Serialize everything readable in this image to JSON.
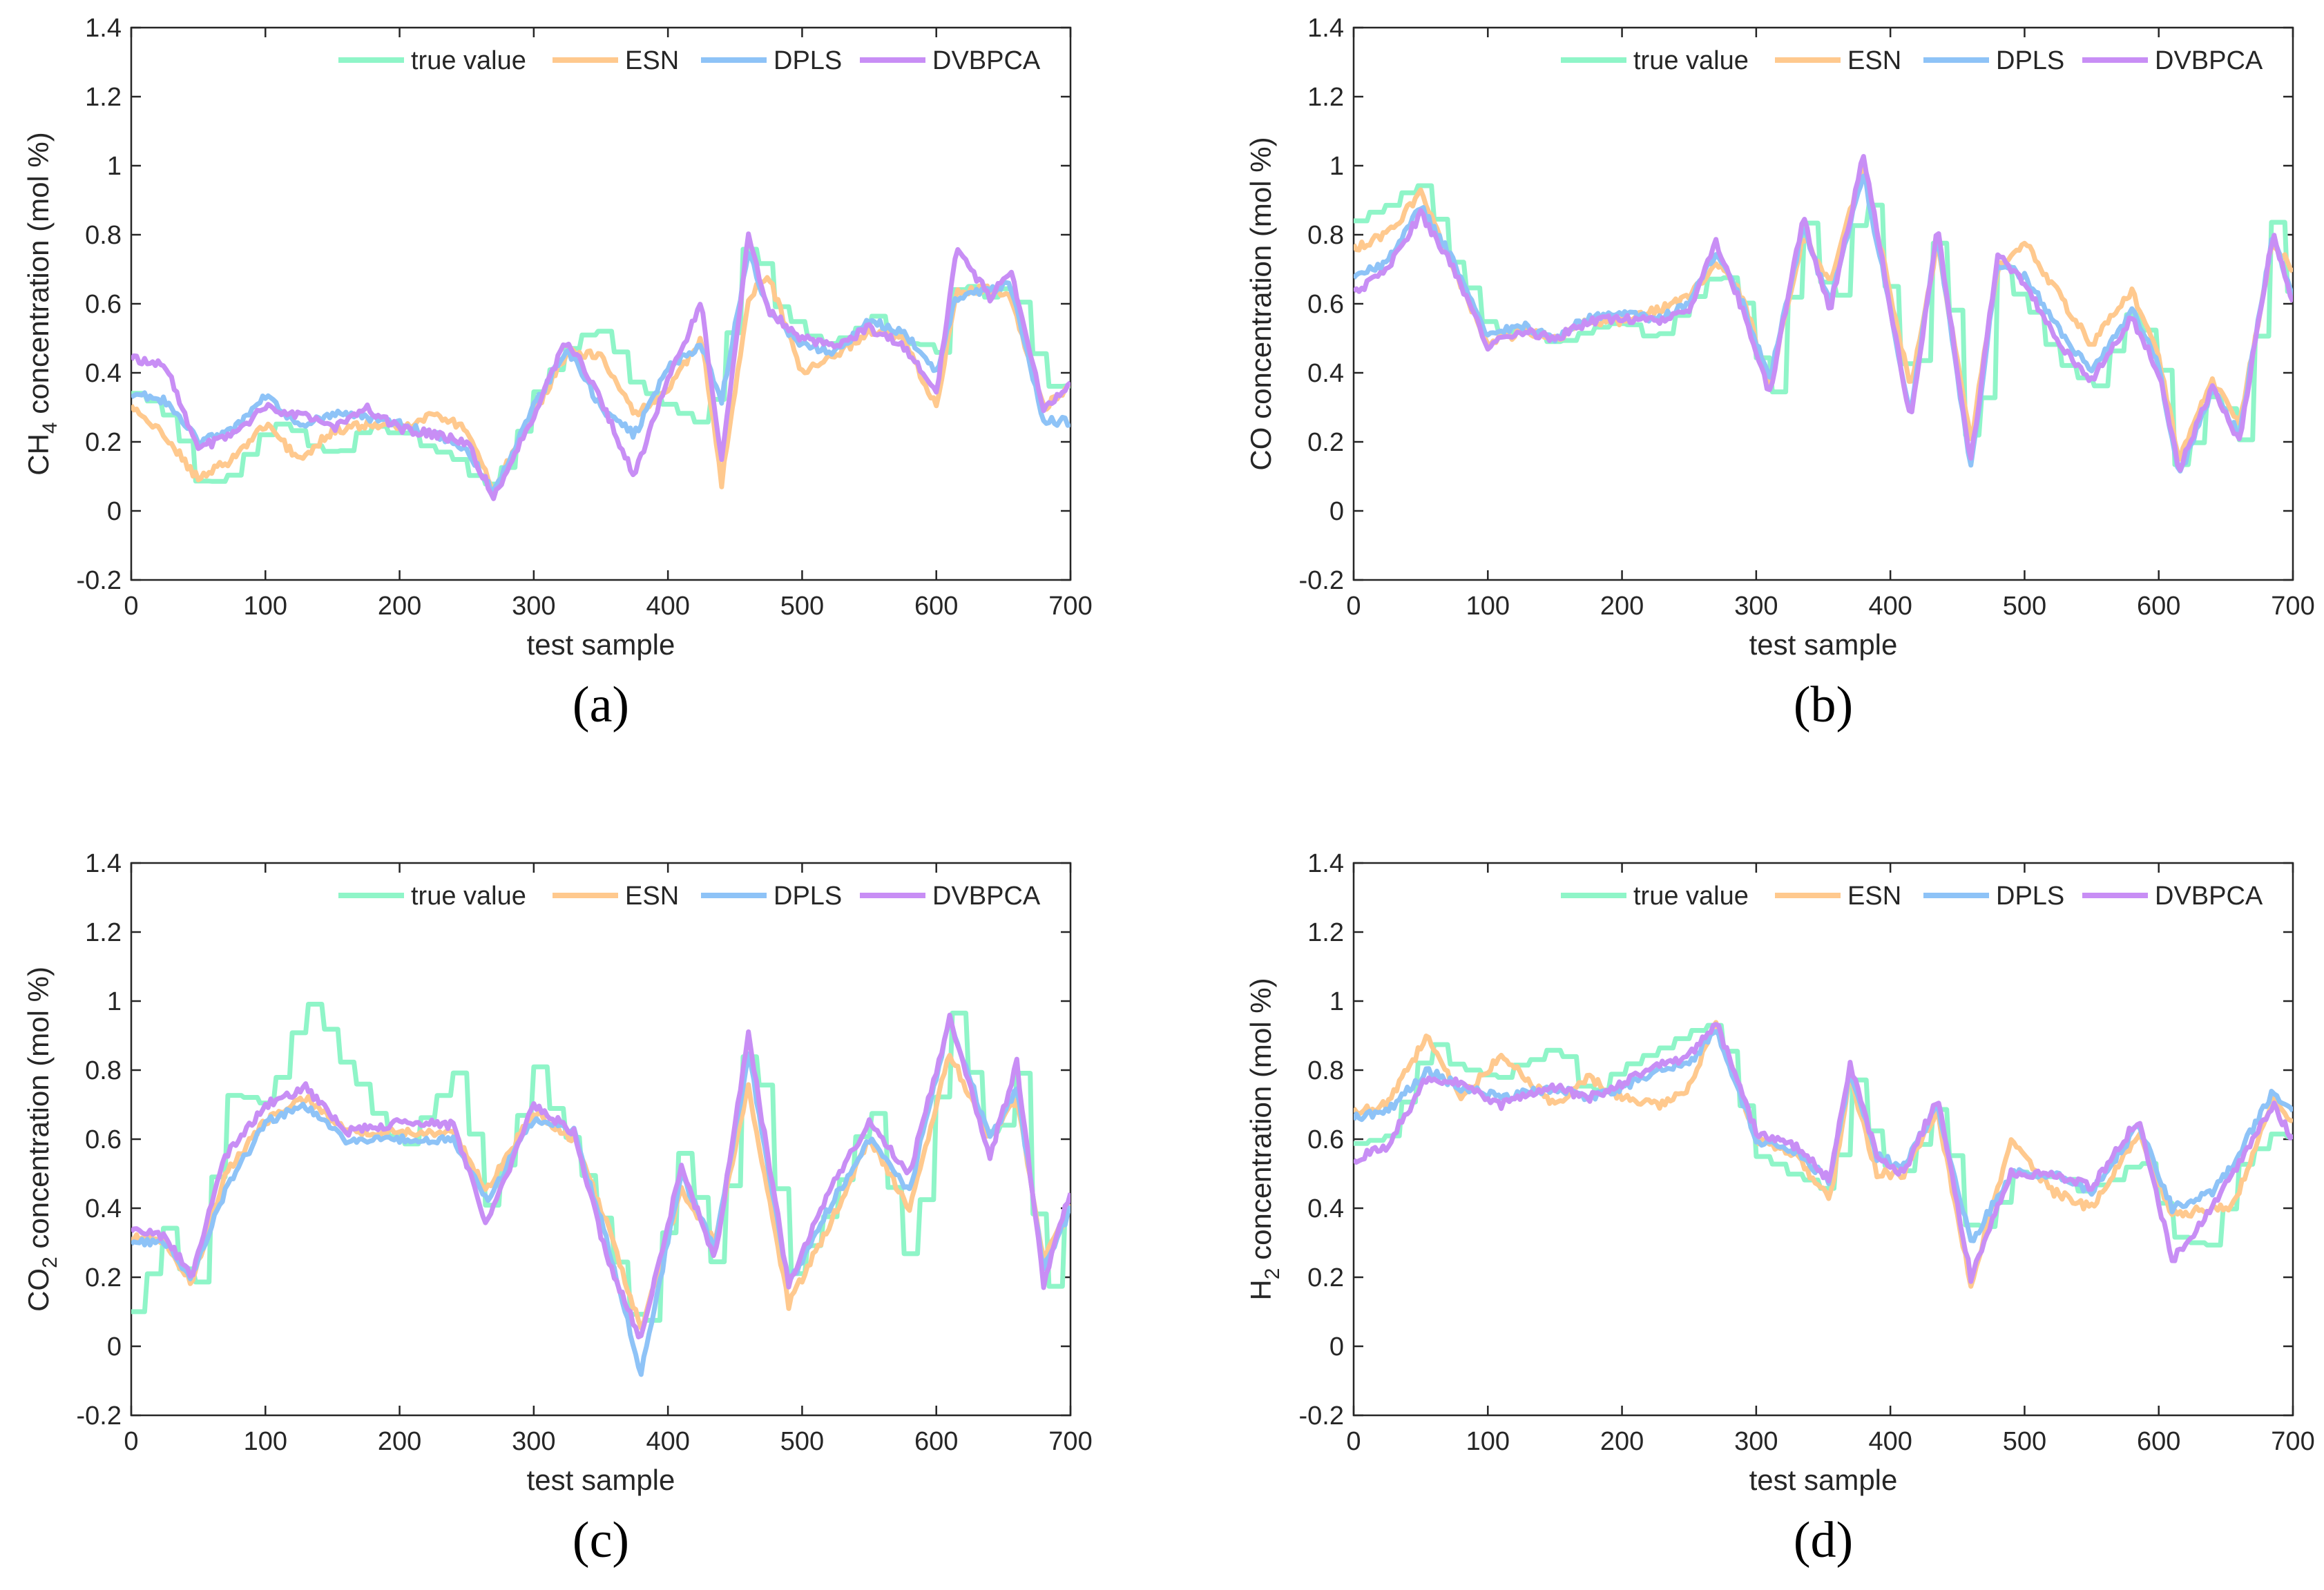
{
  "figure": {
    "colors": {
      "true value": "#8ff5c8",
      "ESN": "#ffc98e",
      "DPLS": "#8ec3f7",
      "DVBPCA": "#c88ef5"
    }
  },
  "chart_data": [
    {
      "type": "line",
      "caption": "(a)",
      "ylabel": "CH",
      "ylabel_sub": "4",
      "ylabel_rest": " concentration (mol %)",
      "xlabel": "test sample",
      "xlim": [
        0,
        700
      ],
      "ylim": [
        -0.2,
        1.4
      ],
      "xticks": [
        "0",
        "100",
        "200",
        "300",
        "400",
        "500",
        "600",
        "700"
      ],
      "yticks": [
        "-0.2",
        "0",
        "0.2",
        "0.4",
        "0.6",
        "0.8",
        "1",
        "1.2",
        "1.4"
      ],
      "legend": [
        "true value",
        "ESN",
        "DPLS",
        "DVBPCA"
      ],
      "legend_position": "top-right",
      "x": [
        0,
        25,
        50,
        75,
        100,
        125,
        150,
        175,
        200,
        225,
        250,
        270,
        300,
        325,
        350,
        375,
        400,
        425,
        440,
        460,
        475,
        500,
        525,
        550,
        575,
        600,
        615,
        640,
        655,
        680,
        700
      ],
      "series": [
        {
          "name": "true value",
          "values": [
            0.33,
            0.28,
            0.08,
            0.12,
            0.25,
            0.22,
            0.15,
            0.25,
            0.23,
            0.18,
            0.12,
            0.06,
            0.35,
            0.48,
            0.52,
            0.35,
            0.3,
            0.25,
            0.42,
            0.84,
            0.6,
            0.52,
            0.48,
            0.57,
            0.48,
            0.46,
            0.68,
            0.62,
            0.66,
            0.36,
            0.36
          ]
        },
        {
          "name": "ESN",
          "values": [
            0.3,
            0.22,
            0.09,
            0.15,
            0.25,
            0.15,
            0.23,
            0.25,
            0.24,
            0.28,
            0.24,
            0.06,
            0.28,
            0.46,
            0.45,
            0.28,
            0.35,
            0.5,
            0.08,
            0.62,
            0.68,
            0.4,
            0.45,
            0.52,
            0.5,
            0.3,
            0.64,
            0.64,
            0.62,
            0.3,
            0.36
          ]
        },
        {
          "name": "DPLS",
          "values": [
            0.34,
            0.32,
            0.2,
            0.23,
            0.33,
            0.25,
            0.28,
            0.27,
            0.25,
            0.22,
            0.18,
            0.05,
            0.3,
            0.47,
            0.3,
            0.22,
            0.42,
            0.48,
            0.32,
            0.75,
            0.58,
            0.48,
            0.46,
            0.55,
            0.52,
            0.4,
            0.62,
            0.64,
            0.66,
            0.26,
            0.26
          ]
        },
        {
          "name": "DVBPCA",
          "values": [
            0.44,
            0.43,
            0.18,
            0.22,
            0.3,
            0.28,
            0.24,
            0.3,
            0.24,
            0.22,
            0.2,
            0.04,
            0.28,
            0.5,
            0.32,
            0.1,
            0.38,
            0.6,
            0.14,
            0.8,
            0.58,
            0.5,
            0.48,
            0.53,
            0.48,
            0.34,
            0.76,
            0.62,
            0.7,
            0.3,
            0.36
          ]
        }
      ]
    },
    {
      "type": "line",
      "caption": "(b)",
      "ylabel": "CO concentration (mol %)",
      "ylabel_sub": "",
      "ylabel_rest": "",
      "xlabel": "test sample",
      "xlim": [
        0,
        700
      ],
      "ylim": [
        -0.2,
        1.4
      ],
      "xticks": [
        "0",
        "100",
        "200",
        "300",
        "400",
        "500",
        "600",
        "700"
      ],
      "yticks": [
        "-0.2",
        "0",
        "0.2",
        "0.4",
        "0.6",
        "0.8",
        "1",
        "1.2",
        "1.4"
      ],
      "legend": [
        "true value",
        "ESN",
        "DPLS",
        "DVBPCA"
      ],
      "legend_position": "top-right",
      "x": [
        0,
        25,
        50,
        75,
        100,
        125,
        150,
        175,
        200,
        225,
        250,
        270,
        290,
        310,
        335,
        355,
        380,
        415,
        435,
        460,
        480,
        500,
        530,
        550,
        580,
        600,
        615,
        640,
        660,
        685,
        700
      ],
      "series": [
        {
          "name": "true value",
          "values": [
            0.85,
            0.88,
            0.95,
            0.7,
            0.52,
            0.55,
            0.48,
            0.52,
            0.55,
            0.5,
            0.6,
            0.7,
            0.6,
            0.3,
            0.85,
            0.55,
            0.95,
            0.3,
            0.85,
            0.1,
            0.7,
            0.6,
            0.4,
            0.35,
            0.6,
            0.4,
            0.08,
            0.38,
            0.2,
            0.85,
            0.55
          ]
        },
        {
          "name": "ESN",
          "values": [
            0.76,
            0.8,
            0.92,
            0.7,
            0.48,
            0.52,
            0.5,
            0.55,
            0.55,
            0.58,
            0.62,
            0.72,
            0.62,
            0.36,
            0.8,
            0.66,
            1.0,
            0.35,
            0.78,
            0.2,
            0.7,
            0.78,
            0.6,
            0.48,
            0.64,
            0.45,
            0.15,
            0.38,
            0.25,
            0.78,
            0.7
          ]
        },
        {
          "name": "DPLS",
          "values": [
            0.68,
            0.72,
            0.88,
            0.72,
            0.5,
            0.54,
            0.5,
            0.56,
            0.58,
            0.55,
            0.6,
            0.75,
            0.6,
            0.38,
            0.82,
            0.6,
            0.98,
            0.28,
            0.8,
            0.12,
            0.72,
            0.68,
            0.5,
            0.4,
            0.58,
            0.42,
            0.1,
            0.35,
            0.22,
            0.8,
            0.62
          ]
        },
        {
          "name": "DVBPCA",
          "values": [
            0.63,
            0.7,
            0.86,
            0.7,
            0.48,
            0.52,
            0.5,
            0.55,
            0.56,
            0.55,
            0.58,
            0.78,
            0.58,
            0.34,
            0.85,
            0.58,
            1.03,
            0.26,
            0.82,
            0.14,
            0.74,
            0.66,
            0.46,
            0.38,
            0.56,
            0.4,
            0.12,
            0.36,
            0.2,
            0.8,
            0.6
          ]
        }
      ]
    },
    {
      "type": "line",
      "caption": "(c)",
      "ylabel": "CO",
      "ylabel_sub": "2",
      "ylabel_rest": " concentration (mol %)",
      "xlabel": "test sample",
      "xlim": [
        0,
        700
      ],
      "ylim": [
        -0.2,
        1.4
      ],
      "xticks": [
        "0",
        "100",
        "200",
        "300",
        "400",
        "500",
        "600",
        "700"
      ],
      "yticks": [
        "-0.2",
        "0",
        "0.2",
        "0.4",
        "0.6",
        "0.8",
        "1",
        "1.2",
        "1.4"
      ],
      "legend": [
        "true value",
        "ESN",
        "DPLS",
        "DVBPCA"
      ],
      "legend_position": "top-right",
      "x": [
        0,
        25,
        45,
        70,
        100,
        130,
        160,
        200,
        240,
        265,
        300,
        330,
        355,
        380,
        410,
        435,
        460,
        490,
        520,
        550,
        580,
        610,
        640,
        660,
        680,
        700
      ],
      "series": [
        {
          "name": "true value",
          "values": [
            0.1,
            0.35,
            0.12,
            0.72,
            0.7,
            1.0,
            0.8,
            0.55,
            0.8,
            0.4,
            0.8,
            0.55,
            0.3,
            0.0,
            0.6,
            0.2,
            0.95,
            0.2,
            0.4,
            0.7,
            0.2,
            1.0,
            0.55,
            0.8,
            0.12,
            0.45
          ]
        },
        {
          "name": "ESN",
          "values": [
            0.32,
            0.3,
            0.18,
            0.5,
            0.65,
            0.72,
            0.62,
            0.62,
            0.62,
            0.45,
            0.68,
            0.6,
            0.35,
            0.05,
            0.45,
            0.3,
            0.75,
            0.12,
            0.35,
            0.6,
            0.4,
            0.85,
            0.6,
            0.72,
            0.25,
            0.4
          ]
        },
        {
          "name": "DPLS",
          "values": [
            0.3,
            0.3,
            0.2,
            0.45,
            0.65,
            0.7,
            0.6,
            0.6,
            0.6,
            0.42,
            0.66,
            0.62,
            0.3,
            -0.08,
            0.5,
            0.28,
            0.85,
            0.18,
            0.4,
            0.6,
            0.45,
            0.95,
            0.6,
            0.75,
            0.22,
            0.4
          ]
        },
        {
          "name": "DVBPCA",
          "values": [
            0.33,
            0.32,
            0.2,
            0.55,
            0.7,
            0.75,
            0.62,
            0.65,
            0.64,
            0.35,
            0.7,
            0.62,
            0.25,
            0.02,
            0.52,
            0.25,
            0.9,
            0.18,
            0.45,
            0.65,
            0.5,
            0.95,
            0.55,
            0.82,
            0.18,
            0.45
          ]
        }
      ]
    },
    {
      "type": "line",
      "caption": "(d)",
      "ylabel": "H",
      "ylabel_sub": "2",
      "ylabel_rest": " concentration (mol %)",
      "xlabel": "test sample",
      "xlim": [
        0,
        700
      ],
      "ylim": [
        -0.2,
        1.4
      ],
      "xticks": [
        "0",
        "100",
        "200",
        "300",
        "400",
        "500",
        "600",
        "700"
      ],
      "yticks": [
        "-0.2",
        "0",
        "0.2",
        "0.4",
        "0.6",
        "0.8",
        "1",
        "1.2",
        "1.4"
      ],
      "legend": [
        "true value",
        "ESN",
        "DPLS",
        "DVBPCA"
      ],
      "legend_position": "top-right",
      "x": [
        0,
        25,
        55,
        80,
        110,
        150,
        175,
        200,
        230,
        250,
        270,
        300,
        330,
        355,
        370,
        390,
        410,
        435,
        460,
        490,
        520,
        550,
        585,
        610,
        640,
        655,
        685,
        700
      ],
      "series": [
        {
          "name": "true value",
          "values": [
            0.58,
            0.62,
            0.88,
            0.8,
            0.78,
            0.88,
            0.72,
            0.82,
            0.88,
            0.92,
            0.93,
            0.55,
            0.48,
            0.45,
            0.8,
            0.55,
            0.5,
            0.72,
            0.28,
            0.5,
            0.48,
            0.45,
            0.55,
            0.32,
            0.3,
            0.5,
            0.62,
            0.6
          ]
        },
        {
          "name": "ESN",
          "values": [
            0.68,
            0.7,
            0.9,
            0.72,
            0.84,
            0.7,
            0.78,
            0.72,
            0.7,
            0.75,
            0.94,
            0.6,
            0.55,
            0.42,
            0.78,
            0.5,
            0.5,
            0.68,
            0.18,
            0.6,
            0.45,
            0.4,
            0.62,
            0.38,
            0.4,
            0.4,
            0.72,
            0.64
          ]
        },
        {
          "name": "DPLS",
          "values": [
            0.66,
            0.68,
            0.8,
            0.75,
            0.72,
            0.75,
            0.72,
            0.75,
            0.8,
            0.82,
            0.92,
            0.6,
            0.56,
            0.48,
            0.8,
            0.55,
            0.52,
            0.7,
            0.3,
            0.5,
            0.5,
            0.45,
            0.64,
            0.4,
            0.45,
            0.52,
            0.74,
            0.68
          ]
        },
        {
          "name": "DVBPCA",
          "values": [
            0.54,
            0.58,
            0.78,
            0.76,
            0.7,
            0.75,
            0.72,
            0.76,
            0.82,
            0.84,
            0.94,
            0.62,
            0.58,
            0.48,
            0.82,
            0.55,
            0.5,
            0.72,
            0.2,
            0.5,
            0.5,
            0.46,
            0.66,
            0.25,
            0.4,
            0.5,
            0.7,
            0.6
          ]
        }
      ]
    }
  ]
}
